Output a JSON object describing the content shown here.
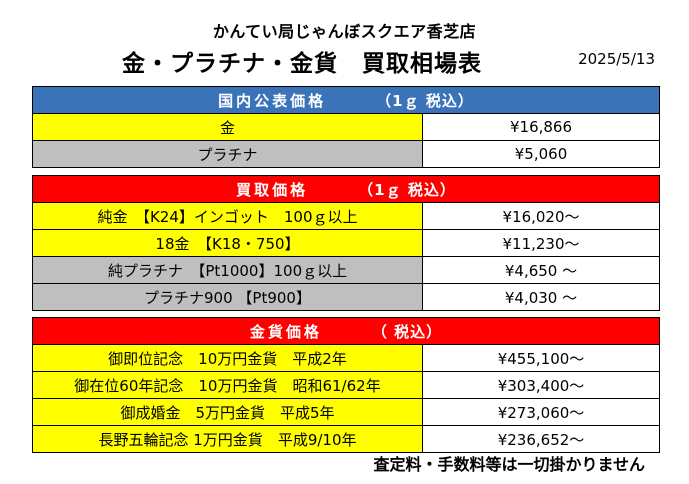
{
  "header": {
    "shop_name": "かんてい局じゃんぼスクエア香芝店",
    "title": "金・プラチナ・金貨　買取相場表",
    "date": "2025/5/13"
  },
  "sections": [
    {
      "heading": "国内公表価格",
      "tax_note": "（1ｇ 税込）",
      "color": "#3b73b9",
      "rows": [
        {
          "name": "金",
          "price": "¥16,866",
          "color": "#ffff00"
        },
        {
          "name": "プラチナ",
          "price": "¥5,060",
          "color": "#bfbfbf"
        }
      ]
    },
    {
      "heading": "買取価格",
      "tax_note": "（1ｇ 税込）",
      "color": "#ff0000",
      "rows": [
        {
          "name": "純金　【K24】インゴット　100ｇ以上",
          "price": "¥16,020～",
          "color": "#ffff00"
        },
        {
          "name": "18金　【K18・750】",
          "price": "¥11,230～",
          "color": "#ffff00"
        },
        {
          "name": "純プラチナ　【Pt1000】100ｇ以上",
          "price": "¥4,650 ～",
          "color": "#bfbfbf"
        },
        {
          "name": "プラチナ900 【Pt900】",
          "price": "¥4,030 ～",
          "color": "#bfbfbf"
        }
      ]
    },
    {
      "heading": "金貨価格",
      "tax_note": "（ 税込）",
      "color": "#ff0000",
      "rows": [
        {
          "name": "御即位記念　10万円金貨　平成2年",
          "price": "¥455,100～",
          "color": "#ffff00"
        },
        {
          "name": "御在位60年記念　10万円金貨　昭和61/62年",
          "price": "¥303,400～",
          "color": "#ffff00"
        },
        {
          "name": "御成婚金　5万円金貨　平成5年",
          "price": "¥273,060～",
          "color": "#ffff00"
        },
        {
          "name": "長野五輪記念 1万円金貨　平成9/10年",
          "price": "¥236,652～",
          "color": "#ffff00"
        }
      ]
    }
  ],
  "footer_note": "査定料・手数料等は一切掛かりません"
}
